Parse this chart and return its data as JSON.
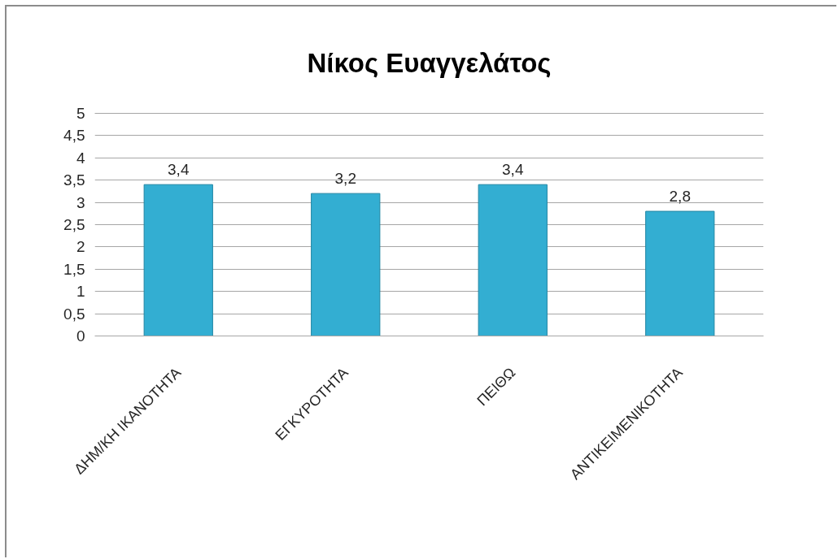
{
  "chart_data": {
    "type": "bar",
    "title": "Νίκος Ευαγγελάτος",
    "categories": [
      "ΔΗΜ/ΚΗ ΙΚΑΝΟΤΗΤΑ",
      "ΕΓΚΥΡΟΤΗΤΑ",
      "ΠΕΙΘΩ",
      "ΑΝΤΙΚΕΙΜΕΝΙΚΟΤΗΤΑ"
    ],
    "values": [
      3.4,
      3.2,
      3.4,
      2.8
    ],
    "value_labels": [
      "3,4",
      "3,2",
      "3,4",
      "2,8"
    ],
    "color": "#33aed2",
    "ylim": [
      0,
      5
    ],
    "yticks": [
      0,
      {
        "value": 0.5,
        "label": "0,5"
      },
      1,
      {
        "value": 1.5,
        "label": "1,5"
      },
      2,
      {
        "value": 2.5,
        "label": "2,5"
      },
      3,
      {
        "value": 3.5,
        "label": "3,5"
      },
      4,
      {
        "value": 4.5,
        "label": "4,5"
      },
      5
    ],
    "grid": "y"
  }
}
